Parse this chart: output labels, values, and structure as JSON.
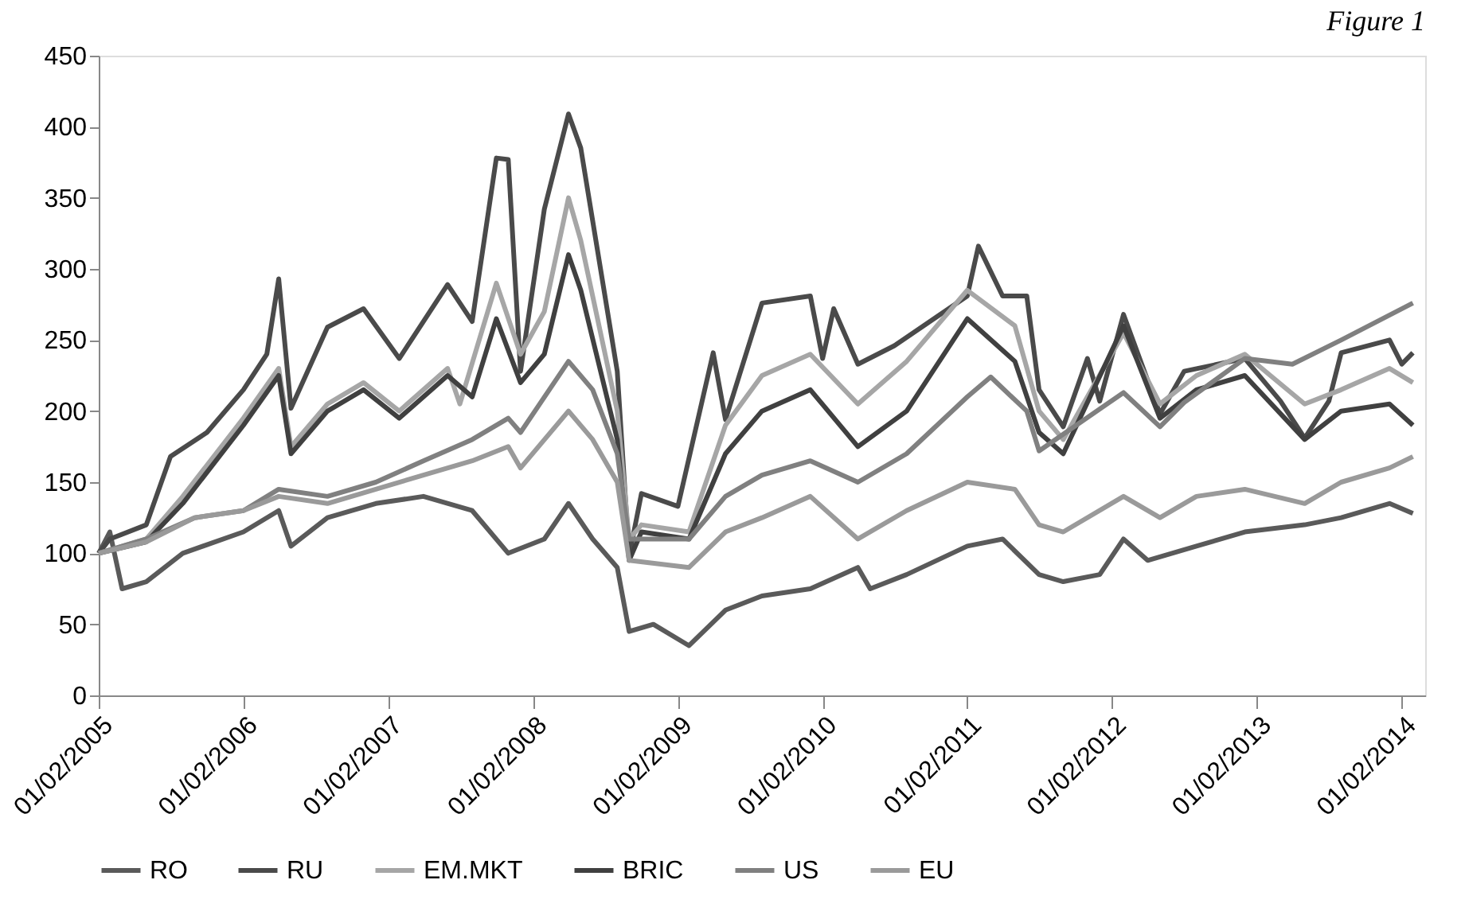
{
  "chart_data": {
    "type": "line",
    "title": "Figure 1",
    "legend": "bottom",
    "grid": false,
    "marker": "none",
    "line_style": "solid",
    "xlim": [
      "2005-02-01",
      "2014-04-01"
    ],
    "xticks": [
      {
        "value": "2005-02-01",
        "label": "01/02/2005"
      },
      {
        "value": "2006-02-01",
        "label": "01/02/2006"
      },
      {
        "value": "2007-02-01",
        "label": "01/02/2007"
      },
      {
        "value": "2008-02-01",
        "label": "01/02/2008"
      },
      {
        "value": "2009-02-01",
        "label": "01/02/2009"
      },
      {
        "value": "2010-02-01",
        "label": "01/02/2010"
      },
      {
        "value": "2011-02-01",
        "label": "01/02/2011"
      },
      {
        "value": "2012-02-01",
        "label": "01/02/2012"
      },
      {
        "value": "2013-02-01",
        "label": "01/02/2013"
      },
      {
        "value": "2014-02-01",
        "label": "01/02/2014"
      }
    ],
    "ylim": [
      0,
      450
    ],
    "yticks": [
      0,
      50,
      100,
      150,
      200,
      250,
      300,
      350,
      400,
      450
    ],
    "series": [
      {
        "name": "RO",
        "color": "#5a5a5a",
        "x": [
          "2005-02",
          "2005-03",
          "2005-04",
          "2005-06",
          "2005-09",
          "2006-02",
          "2006-05",
          "2006-06",
          "2006-09",
          "2007-01",
          "2007-05",
          "2007-09",
          "2007-12",
          "2008-03",
          "2008-05",
          "2008-07",
          "2008-09",
          "2008-10",
          "2008-12",
          "2009-03",
          "2009-06",
          "2009-09",
          "2010-01",
          "2010-05",
          "2010-06",
          "2010-09",
          "2011-02",
          "2011-05",
          "2011-08",
          "2011-10",
          "2012-01",
          "2012-03",
          "2012-05",
          "2012-09",
          "2013-01",
          "2013-06",
          "2013-09",
          "2014-01",
          "2014-03"
        ],
        "values": [
          100,
          115,
          75,
          80,
          100,
          115,
          130,
          105,
          125,
          135,
          140,
          130,
          100,
          110,
          135,
          110,
          90,
          45,
          50,
          35,
          60,
          70,
          75,
          90,
          75,
          85,
          105,
          110,
          85,
          80,
          85,
          110,
          95,
          105,
          115,
          120,
          125,
          135,
          128
        ]
      },
      {
        "name": "RU",
        "color": "#4a4a4a",
        "x": [
          "2005-02",
          "2005-03",
          "2005-06",
          "2005-08",
          "2005-11",
          "2006-02",
          "2006-04",
          "2006-05",
          "2006-06",
          "2006-09",
          "2006-12",
          "2007-03",
          "2007-07",
          "2007-09",
          "2007-11",
          "2007-12",
          "2008-01",
          "2008-03",
          "2008-05",
          "2008-06",
          "2008-09",
          "2008-10",
          "2008-11",
          "2009-02",
          "2009-05",
          "2009-06",
          "2009-09",
          "2010-01",
          "2010-02",
          "2010-03",
          "2010-05",
          "2010-08",
          "2011-02",
          "2011-03",
          "2011-05",
          "2011-07",
          "2011-08",
          "2011-10",
          "2011-12",
          "2012-01",
          "2012-03",
          "2012-06",
          "2012-08",
          "2013-01",
          "2013-04",
          "2013-06",
          "2013-08",
          "2013-09",
          "2014-01",
          "2014-02",
          "2014-03"
        ],
        "values": [
          100,
          110,
          120,
          168,
          185,
          215,
          240,
          293,
          202,
          259,
          272,
          237,
          289,
          263,
          378,
          377,
          228,
          342,
          409,
          385,
          228,
          98,
          142,
          133,
          241,
          194,
          276,
          281,
          237,
          272,
          233,
          246,
          281,
          316,
          281,
          281,
          215,
          189,
          237,
          207,
          268,
          198,
          228,
          237,
          207,
          181,
          207,
          241,
          250,
          233,
          241
        ]
      },
      {
        "name": "EM.MKT",
        "color": "#a6a6a6",
        "x": [
          "2005-02",
          "2005-06",
          "2005-09",
          "2006-02",
          "2006-05",
          "2006-06",
          "2006-09",
          "2006-12",
          "2007-03",
          "2007-07",
          "2007-08",
          "2007-11",
          "2008-01",
          "2008-03",
          "2008-05",
          "2008-06",
          "2008-09",
          "2008-10",
          "2008-11",
          "2009-03",
          "2009-06",
          "2009-09",
          "2010-01",
          "2010-05",
          "2010-09",
          "2011-02",
          "2011-06",
          "2011-08",
          "2011-10",
          "2012-03",
          "2012-06",
          "2012-09",
          "2013-01",
          "2013-06",
          "2013-09",
          "2014-01",
          "2014-03"
        ],
        "values": [
          100,
          110,
          140,
          195,
          230,
          175,
          205,
          220,
          200,
          230,
          205,
          290,
          240,
          270,
          350,
          320,
          200,
          110,
          120,
          115,
          190,
          225,
          240,
          205,
          235,
          285,
          260,
          200,
          180,
          255,
          205,
          225,
          240,
          205,
          215,
          230,
          220
        ]
      },
      {
        "name": "BRIC",
        "color": "#404040",
        "x": [
          "2005-02",
          "2005-06",
          "2005-09",
          "2006-02",
          "2006-05",
          "2006-06",
          "2006-09",
          "2006-12",
          "2007-03",
          "2007-07",
          "2007-09",
          "2007-11",
          "2008-01",
          "2008-03",
          "2008-05",
          "2008-06",
          "2008-09",
          "2008-10",
          "2008-11",
          "2009-03",
          "2009-06",
          "2009-09",
          "2010-01",
          "2010-05",
          "2010-09",
          "2011-02",
          "2011-06",
          "2011-08",
          "2011-10",
          "2012-03",
          "2012-06",
          "2012-09",
          "2013-01",
          "2013-06",
          "2013-09",
          "2014-01",
          "2014-03"
        ],
        "values": [
          100,
          108,
          135,
          190,
          225,
          170,
          200,
          215,
          195,
          225,
          210,
          265,
          220,
          240,
          310,
          285,
          180,
          95,
          115,
          110,
          170,
          200,
          215,
          175,
          200,
          265,
          235,
          185,
          170,
          260,
          195,
          215,
          225,
          180,
          200,
          205,
          190
        ]
      },
      {
        "name": "US",
        "color": "#808080",
        "x": [
          "2005-02",
          "2005-06",
          "2005-10",
          "2006-02",
          "2006-05",
          "2006-09",
          "2007-01",
          "2007-05",
          "2007-09",
          "2007-12",
          "2008-01",
          "2008-05",
          "2008-07",
          "2008-09",
          "2008-10",
          "2009-03",
          "2009-06",
          "2009-09",
          "2010-01",
          "2010-05",
          "2010-09",
          "2011-02",
          "2011-04",
          "2011-07",
          "2011-08",
          "2012-03",
          "2012-06",
          "2012-08",
          "2013-01",
          "2013-05",
          "2013-09",
          "2014-03"
        ],
        "values": [
          100,
          110,
          125,
          130,
          145,
          140,
          150,
          165,
          180,
          195,
          185,
          235,
          215,
          170,
          110,
          110,
          140,
          155,
          165,
          150,
          170,
          210,
          224,
          200,
          172,
          213,
          189,
          206,
          237,
          233,
          250,
          276
        ]
      },
      {
        "name": "EU",
        "color": "#9a9a9a",
        "x": [
          "2005-02",
          "2005-06",
          "2005-10",
          "2006-02",
          "2006-05",
          "2006-09",
          "2007-01",
          "2007-05",
          "2007-09",
          "2007-12",
          "2008-01",
          "2008-05",
          "2008-07",
          "2008-09",
          "2008-10",
          "2009-03",
          "2009-06",
          "2009-09",
          "2010-01",
          "2010-05",
          "2010-09",
          "2011-02",
          "2011-06",
          "2011-08",
          "2011-10",
          "2012-03",
          "2012-06",
          "2012-09",
          "2013-01",
          "2013-06",
          "2013-09",
          "2014-01",
          "2014-03"
        ],
        "values": [
          100,
          108,
          125,
          130,
          140,
          135,
          145,
          155,
          165,
          175,
          160,
          200,
          180,
          150,
          95,
          90,
          115,
          125,
          140,
          110,
          130,
          150,
          145,
          120,
          115,
          140,
          125,
          140,
          145,
          135,
          150,
          160,
          168
        ]
      }
    ]
  }
}
